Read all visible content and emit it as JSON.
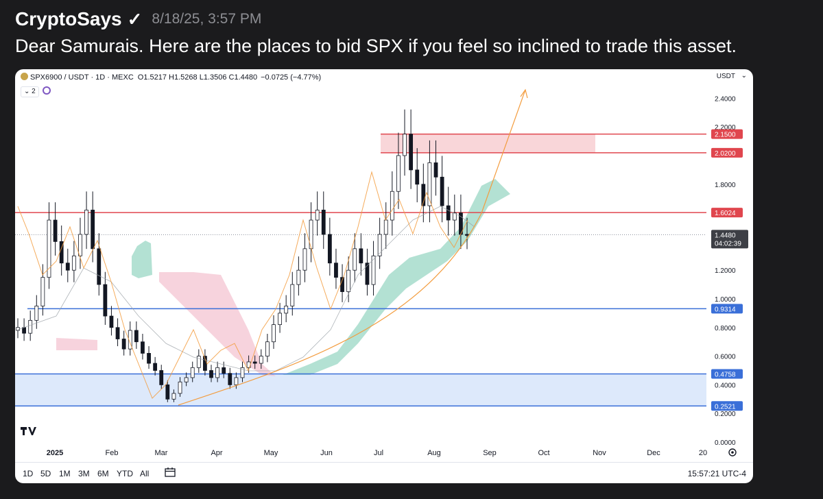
{
  "post": {
    "author": "CryptoSays",
    "verified_mark": "✓",
    "timestamp": "8/18/25, 3:57 PM",
    "text": "Dear Samurais. Here are the places to bid SPX if you feel so inclined to trade this asset."
  },
  "chart": {
    "symbol": "SPX6900 / USDT · 1D · MEXC",
    "ohlc": "O1.5217 H1.5268 L1.3506 C1.4480",
    "change": "−0.0725 (−4.77%)",
    "currency": "USDT",
    "currency_caret": "⌄",
    "collapse_label": "⌄ 2",
    "price_axis": [
      "2.4000",
      "2.2000",
      "1.8000",
      "1.2000",
      "1.0000",
      "0.8000",
      "0.6000",
      "0.4000",
      "0.2000",
      "0.0000"
    ],
    "levels": [
      {
        "label": "2.1500",
        "value": 2.15,
        "color": "#e0464e"
      },
      {
        "label": "2.0200",
        "value": 2.02,
        "color": "#e0464e"
      },
      {
        "label": "1.6024",
        "value": 1.6024,
        "color": "#e0464e"
      },
      {
        "label": "0.9314",
        "value": 0.9314,
        "color": "#3a6fd8"
      },
      {
        "label": "0.4758",
        "value": 0.4758,
        "color": "#3a6fd8"
      },
      {
        "label": "0.2521",
        "value": 0.2521,
        "color": "#3a6fd8"
      }
    ],
    "current_price": "1.4480",
    "countdown": "04:02:39",
    "time_axis": [
      "2025",
      "Feb",
      "Mar",
      "Apr",
      "May",
      "Jun",
      "Jul",
      "Aug",
      "Sep",
      "Oct",
      "Nov",
      "Dec",
      "20"
    ],
    "ranges": [
      "1D",
      "5D",
      "1M",
      "3M",
      "6M",
      "YTD",
      "All"
    ],
    "clock": "15:57:21 UTC-4",
    "colors": {
      "candle": "#131722",
      "ichimoku_green": "#a6dccb",
      "ichimoku_red": "#f4c1cf",
      "resistance_zone": "#f9d6d9",
      "support_zone": "#dde9fb",
      "orange": "#f39c3e"
    }
  }
}
